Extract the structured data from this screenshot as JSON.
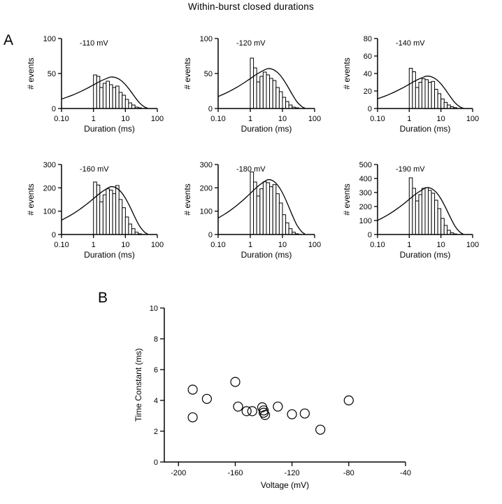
{
  "figure": {
    "title": "Within-burst closed durations",
    "panel_a_label": "A",
    "panel_b_label": "B"
  },
  "shared": {
    "bin_edges": [
      1.0,
      1.26,
      1.58,
      2.0,
      2.51,
      3.16,
      3.98,
      5.01,
      6.31,
      7.94,
      10.0,
      12.6,
      15.8,
      20.0,
      25.1,
      31.6,
      39.8
    ],
    "curve_shape": {
      "log10_t": [
        -1.0,
        -0.8,
        -0.6,
        -0.4,
        -0.2,
        0.0,
        0.2,
        0.4,
        0.55,
        0.7,
        0.85,
        1.0,
        1.15,
        1.3,
        1.45,
        1.6,
        1.7
      ],
      "v": [
        0.3,
        0.37,
        0.45,
        0.54,
        0.64,
        0.75,
        0.86,
        0.95,
        1.0,
        0.98,
        0.9,
        0.76,
        0.57,
        0.36,
        0.17,
        0.05,
        0.01
      ]
    }
  },
  "chart_data": [
    {
      "type": "histogram",
      "panel": "A",
      "label": "-110 mV",
      "xlabel": "Duration (ms)",
      "ylabel": "# events",
      "xscale": "log",
      "xlim": [
        0.1,
        100
      ],
      "xticks": [
        0.1,
        1,
        10,
        100
      ],
      "xtick_labels": [
        "0.10",
        "1",
        "10",
        "100"
      ],
      "ylim": [
        0,
        100
      ],
      "yticks": [
        0,
        50,
        100
      ],
      "counts": [
        48,
        46,
        30,
        36,
        39,
        34,
        30,
        32,
        23,
        19,
        13,
        8,
        5,
        2,
        1,
        0
      ],
      "curve_amplitude": 45
    },
    {
      "type": "histogram",
      "panel": "A",
      "label": "-120 mV",
      "xlabel": "Duration (ms)",
      "ylabel": "# events",
      "xscale": "log",
      "xlim": [
        0.1,
        100
      ],
      "xticks": [
        0.1,
        1,
        10,
        100
      ],
      "xtick_labels": [
        "0.10",
        "1",
        "10",
        "100"
      ],
      "ylim": [
        0,
        100
      ],
      "yticks": [
        0,
        50,
        100
      ],
      "counts": [
        72,
        58,
        38,
        46,
        52,
        48,
        43,
        40,
        30,
        24,
        16,
        10,
        5,
        2,
        1,
        0
      ],
      "curve_amplitude": 57
    },
    {
      "type": "histogram",
      "panel": "A",
      "label": "-140 mV",
      "xlabel": "Duration (ms)",
      "ylabel": "# events",
      "xscale": "log",
      "xlim": [
        0.1,
        100
      ],
      "xticks": [
        0.1,
        1,
        10,
        100
      ],
      "xtick_labels": [
        "0.10",
        "1",
        "10",
        "100"
      ],
      "ylim": [
        0,
        80
      ],
      "yticks": [
        0,
        20,
        40,
        60,
        80
      ],
      "counts": [
        46,
        42,
        24,
        30,
        34,
        33,
        30,
        31,
        22,
        17,
        11,
        7,
        4,
        2,
        1,
        0
      ],
      "curve_amplitude": 37
    },
    {
      "type": "histogram",
      "panel": "A",
      "label": "-160 mV",
      "xlabel": "Duration (ms)",
      "ylabel": "# events",
      "xscale": "log",
      "xlim": [
        0.1,
        100
      ],
      "xticks": [
        0.1,
        1,
        10,
        100
      ],
      "xtick_labels": [
        "0.10",
        "1",
        "10",
        "100"
      ],
      "ylim": [
        0,
        300
      ],
      "yticks": [
        0,
        100,
        200,
        300
      ],
      "counts": [
        225,
        212,
        140,
        170,
        196,
        190,
        175,
        210,
        150,
        115,
        75,
        45,
        25,
        10,
        3,
        0
      ],
      "curve_amplitude": 205
    },
    {
      "type": "histogram",
      "panel": "A",
      "label": "-180 mV",
      "xlabel": "Duration (ms)",
      "ylabel": "# events",
      "xscale": "log",
      "xlim": [
        0.1,
        100
      ],
      "xticks": [
        0.1,
        1,
        10,
        100
      ],
      "xtick_labels": [
        "0.10",
        "1",
        "10",
        "100"
      ],
      "ylim": [
        0,
        300
      ],
      "yticks": [
        0,
        100,
        200,
        300
      ],
      "counts": [
        268,
        225,
        165,
        196,
        226,
        222,
        205,
        214,
        175,
        135,
        85,
        50,
        25,
        10,
        3,
        0
      ],
      "curve_amplitude": 235
    },
    {
      "type": "histogram",
      "panel": "A",
      "label": "-190 mV",
      "xlabel": "Duration (ms)",
      "ylabel": "# events",
      "xscale": "log",
      "xlim": [
        0.1,
        100
      ],
      "xticks": [
        0.1,
        1,
        10,
        100
      ],
      "xtick_labels": [
        "0.10",
        "1",
        "10",
        "100"
      ],
      "ylim": [
        0,
        500
      ],
      "yticks": [
        0,
        100,
        200,
        300,
        400,
        500
      ],
      "counts": [
        405,
        330,
        240,
        285,
        330,
        335,
        315,
        295,
        245,
        185,
        115,
        65,
        30,
        12,
        4,
        0
      ],
      "curve_amplitude": 335
    },
    {
      "type": "scatter",
      "panel": "B",
      "xlabel": "Voltage (mV)",
      "ylabel": "Time Constant (ms)",
      "xlim": [
        -210,
        -40
      ],
      "xticks": [
        -200,
        -160,
        -120,
        -80,
        -40
      ],
      "ylim": [
        0,
        10
      ],
      "yticks": [
        0,
        2,
        4,
        6,
        8,
        10
      ],
      "points": [
        {
          "x": -190,
          "y": 4.7
        },
        {
          "x": -190,
          "y": 2.9
        },
        {
          "x": -180,
          "y": 4.1
        },
        {
          "x": -160,
          "y": 5.2
        },
        {
          "x": -158,
          "y": 3.6
        },
        {
          "x": -152,
          "y": 3.3
        },
        {
          "x": -148,
          "y": 3.3
        },
        {
          "x": -141,
          "y": 3.55
        },
        {
          "x": -140,
          "y": 3.35
        },
        {
          "x": -140,
          "y": 3.2
        },
        {
          "x": -139,
          "y": 3.05
        },
        {
          "x": -130,
          "y": 3.6
        },
        {
          "x": -120,
          "y": 3.1
        },
        {
          "x": -111,
          "y": 3.15
        },
        {
          "x": -100,
          "y": 2.1
        },
        {
          "x": -80,
          "y": 4.0
        }
      ]
    }
  ]
}
